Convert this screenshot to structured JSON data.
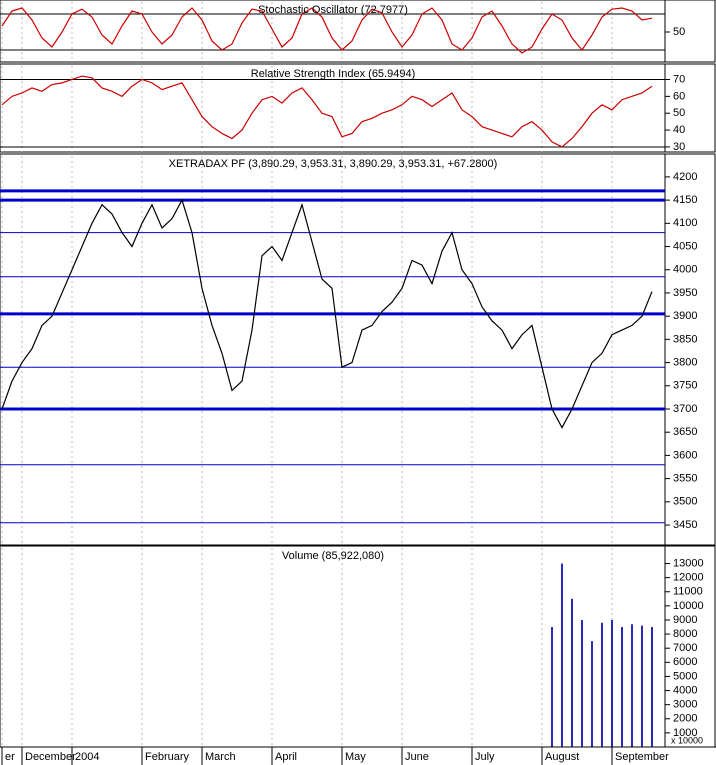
{
  "chart_data": [
    {
      "type": "line",
      "title": "Stochastic Oscillator (72.7977)",
      "color": "#cc0000",
      "ylim": [
        0,
        100
      ],
      "yticks": [
        50
      ],
      "levels": [
        20,
        80
      ],
      "values": [
        60,
        85,
        90,
        70,
        40,
        25,
        50,
        80,
        88,
        75,
        45,
        30,
        60,
        85,
        80,
        50,
        30,
        45,
        75,
        90,
        70,
        35,
        20,
        30,
        65,
        88,
        85,
        55,
        25,
        40,
        80,
        90,
        75,
        40,
        20,
        35,
        70,
        88,
        82,
        50,
        25,
        45,
        80,
        90,
        70,
        30,
        20,
        40,
        75,
        85,
        60,
        30,
        15,
        25,
        55,
        80,
        70,
        40,
        20,
        45,
        75,
        88,
        90,
        85,
        70,
        73
      ]
    },
    {
      "type": "line",
      "title": "Relative Strength Index (65.9494)",
      "color": "#cc0000",
      "ylim": [
        27,
        78
      ],
      "yticks": [
        30,
        40,
        50,
        60,
        70
      ],
      "levels": [
        30,
        70
      ],
      "values": [
        55,
        60,
        62,
        65,
        63,
        67,
        68,
        70,
        72,
        71,
        65,
        63,
        60,
        66,
        70,
        68,
        64,
        66,
        68,
        58,
        48,
        42,
        38,
        35,
        40,
        50,
        58,
        60,
        56,
        62,
        65,
        58,
        50,
        48,
        36,
        38,
        45,
        47,
        50,
        52,
        55,
        60,
        58,
        54,
        58,
        62,
        52,
        48,
        42,
        40,
        38,
        36,
        42,
        45,
        40,
        33,
        30,
        35,
        42,
        50,
        55,
        52,
        58,
        60,
        62,
        66
      ]
    },
    {
      "type": "line",
      "title": "XETRADAX PF (3,890.29, 3,953.31, 3,890.29, 3,953.31, +67.2800)",
      "color": "#000000",
      "ylim": [
        3407,
        4245
      ],
      "yticks": [
        3450,
        3500,
        3550,
        3600,
        3650,
        3700,
        3750,
        3800,
        3850,
        3900,
        3950,
        4000,
        4050,
        4100,
        4150,
        4200
      ],
      "levels": [
        4080,
        3985,
        3790,
        3580,
        3455
      ],
      "major_levels": [
        4170,
        4150,
        3905,
        3700
      ],
      "level_color": "#0000cc",
      "values": [
        3700,
        3760,
        3800,
        3830,
        3880,
        3900,
        3950,
        4000,
        4050,
        4100,
        4140,
        4120,
        4080,
        4050,
        4100,
        4140,
        4090,
        4110,
        4150,
        4080,
        3960,
        3880,
        3820,
        3740,
        3760,
        3870,
        4030,
        4050,
        4020,
        4080,
        4140,
        4060,
        3980,
        3960,
        3790,
        3800,
        3870,
        3880,
        3910,
        3930,
        3960,
        4020,
        4010,
        3970,
        4040,
        4080,
        4000,
        3970,
        3920,
        3890,
        3870,
        3830,
        3860,
        3880,
        3790,
        3700,
        3660,
        3700,
        3750,
        3800,
        3820,
        3860,
        3870,
        3880,
        3900,
        3953
      ]
    },
    {
      "type": "bar",
      "title": "Volume (85,922,080)",
      "color": "#2a2ab8",
      "multiplier_label": "x 10000",
      "ylim": [
        0,
        14100
      ],
      "yticks": [
        1000,
        2000,
        3000,
        4000,
        5000,
        6000,
        7000,
        8000,
        9000,
        10000,
        11000,
        12000,
        13000
      ],
      "categories": [
        "er",
        null,
        "December",
        null,
        null,
        null,
        null,
        "2004",
        null,
        null,
        null,
        null,
        null,
        null,
        "February",
        null,
        null,
        null,
        null,
        null,
        "March",
        null,
        null,
        null,
        null,
        null,
        null,
        "April",
        null,
        null,
        null,
        null,
        null,
        null,
        "May",
        null,
        null,
        null,
        null,
        null,
        "June",
        null,
        null,
        null,
        null,
        null,
        null,
        "July",
        null,
        null,
        null,
        null,
        null,
        null,
        "August",
        null,
        null,
        null,
        null,
        null,
        null,
        "September",
        null,
        null,
        null,
        null
      ],
      "values": [
        null,
        null,
        null,
        null,
        null,
        null,
        null,
        null,
        null,
        null,
        null,
        null,
        null,
        null,
        null,
        null,
        null,
        null,
        null,
        null,
        null,
        null,
        null,
        null,
        null,
        null,
        null,
        null,
        null,
        null,
        null,
        null,
        null,
        null,
        null,
        null,
        null,
        null,
        null,
        null,
        null,
        null,
        null,
        null,
        null,
        null,
        null,
        null,
        null,
        null,
        null,
        null,
        null,
        null,
        null,
        8500,
        13000,
        10500,
        9000,
        7500,
        8800,
        9000,
        8500,
        8700,
        8600,
        8500
      ]
    }
  ]
}
